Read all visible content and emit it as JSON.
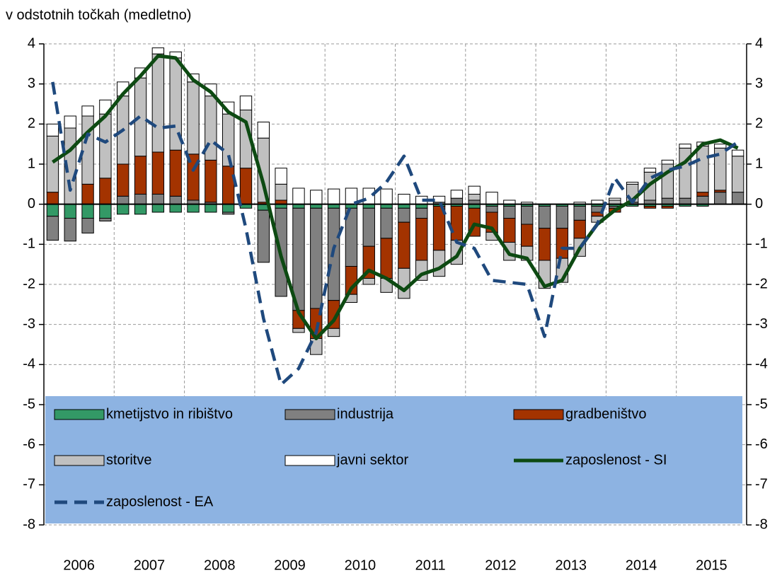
{
  "chart_data": {
    "type": "bar",
    "stacked": true,
    "axis_label": "v odstotnih točkah (medletno)",
    "categories": [
      "2006",
      null,
      null,
      null,
      "2007",
      null,
      null,
      null,
      "2008",
      null,
      null,
      null,
      "2009",
      null,
      null,
      null,
      "2010",
      null,
      null,
      null,
      "2011",
      null,
      null,
      null,
      "2012",
      null,
      null,
      null,
      "2013",
      null,
      null,
      null,
      "2014",
      null,
      null,
      null,
      "2015",
      null,
      null,
      null
    ],
    "ylim": [
      -8,
      4
    ],
    "yticks": [
      -8,
      -7,
      -6,
      -5,
      -4,
      -3,
      -2,
      -1,
      0,
      1,
      2,
      3,
      4
    ],
    "y2lim": [
      -8,
      4
    ],
    "y2ticks": [
      -8,
      -7,
      -6,
      -5,
      -4,
      -3,
      -2,
      -1,
      0,
      1,
      2,
      3,
      4
    ],
    "grid": true,
    "legend": "bottom",
    "series": [
      {
        "name": "kmetijstvo in ribištvo",
        "type": "bar",
        "color": "#339966",
        "values": [
          -0.3,
          -0.35,
          -0.35,
          -0.35,
          -0.25,
          -0.25,
          -0.2,
          -0.2,
          -0.2,
          -0.2,
          -0.2,
          -0.1,
          -0.15,
          -0.1,
          -0.1,
          -0.1,
          -0.1,
          -0.1,
          -0.1,
          -0.1,
          -0.1,
          -0.1,
          -0.05,
          -0.05,
          -0.1,
          -0.05,
          -0.05,
          -0.05,
          -0.05,
          -0.05,
          -0.05,
          -0.05,
          -0.05,
          -0.05,
          -0.05,
          -0.05,
          -0.05,
          -0.05,
          0,
          0
        ]
      },
      {
        "name": "industrija",
        "type": "bar",
        "color": "#808080",
        "values": [
          -0.6,
          -0.57,
          -0.37,
          -0.07,
          0.2,
          0.25,
          0.25,
          0.2,
          0.1,
          0.05,
          -0.05,
          0,
          -1.3,
          -2.2,
          -2.55,
          -2.5,
          -2.3,
          -1.45,
          -0.95,
          -0.75,
          -0.35,
          -0.25,
          0.05,
          0.15,
          0.1,
          -0.15,
          -0.3,
          -0.45,
          -0.55,
          -0.55,
          -0.35,
          -0.15,
          -0.05,
          0.05,
          0.1,
          0.15,
          0.15,
          0.2,
          0.3,
          0.3
        ]
      },
      {
        "name": "gradbeništvo",
        "type": "bar",
        "color": "#a33300",
        "values": [
          0.3,
          0,
          0.5,
          0.65,
          0.8,
          0.95,
          1.05,
          1.15,
          1.15,
          1.05,
          0.95,
          0.9,
          0.05,
          0.1,
          -0.45,
          -0.75,
          -0.7,
          -0.7,
          -0.8,
          -1.0,
          -1.15,
          -1.05,
          -1.1,
          -0.85,
          -0.7,
          -0.5,
          -0.6,
          -0.55,
          -0.8,
          -0.75,
          -0.45,
          -0.1,
          -0.1,
          0,
          -0.05,
          -0.05,
          0,
          0.1,
          0.05,
          0
        ]
      },
      {
        "name": "storitve",
        "type": "bar",
        "color": "#c0c0c0",
        "values": [
          1.4,
          1.9,
          1.7,
          1.6,
          1.7,
          1.95,
          2.45,
          2.3,
          1.8,
          1.6,
          1.3,
          1.45,
          1.6,
          0.4,
          -0.1,
          -0.4,
          -0.2,
          -0.2,
          -0.15,
          -0.35,
          -0.75,
          -0.5,
          -0.65,
          -0.6,
          0.15,
          -0.2,
          -0.45,
          -0.35,
          -0.7,
          -0.6,
          -0.45,
          -0.15,
          0.1,
          0.45,
          0.7,
          0.85,
          1.25,
          1.15,
          1.05,
          0.9
        ]
      },
      {
        "name": "javni sektor",
        "type": "bar",
        "color": "#ffffff",
        "values": [
          0.3,
          0.3,
          0.25,
          0.35,
          0.35,
          0.25,
          0.15,
          0.15,
          0.2,
          0.3,
          0.3,
          0.35,
          0.4,
          0.4,
          0.4,
          0.35,
          0.38,
          0.4,
          0.4,
          0.38,
          0.25,
          0.2,
          0.15,
          0.2,
          0.2,
          0.3,
          0.1,
          0.05,
          0,
          0,
          0.05,
          0.1,
          0.05,
          0.05,
          0.1,
          0.1,
          0.1,
          0.1,
          0.1,
          0.15
        ]
      },
      {
        "name": "zaposlenost - SI",
        "type": "line",
        "color": "#0d4a12",
        "values": [
          1.05,
          1.35,
          1.8,
          2.2,
          2.75,
          3.2,
          3.7,
          3.65,
          3.1,
          2.8,
          2.3,
          2.05,
          0.5,
          -1.3,
          -2.7,
          -3.35,
          -2.9,
          -2.1,
          -1.65,
          -1.85,
          -2.15,
          -1.75,
          -1.6,
          -1.3,
          -0.5,
          -0.6,
          -1.25,
          -1.35,
          -2.05,
          -1.9,
          -1.1,
          -0.5,
          -0.15,
          0.1,
          0.5,
          0.8,
          1.05,
          1.5,
          1.6,
          1.4
        ]
      },
      {
        "name": "zaposlenost - EA",
        "type": "line",
        "dashed": true,
        "color": "#1f497d",
        "values": [
          3.05,
          0.35,
          1.75,
          1.55,
          1.85,
          2.2,
          1.9,
          1.95,
          0.85,
          1.6,
          1.25,
          -0.6,
          -2.85,
          -4.5,
          -4.1,
          -3.2,
          -1.1,
          0,
          0.15,
          0.55,
          1.2,
          0.1,
          0.1,
          -0.95,
          -1.1,
          -1.9,
          -1.95,
          -2.0,
          -3.3,
          -1.1,
          -1.1,
          -0.5,
          0.65,
          0.05,
          0.65,
          0.85,
          0.95,
          1.15,
          1.25,
          1.55
        ]
      }
    ]
  }
}
